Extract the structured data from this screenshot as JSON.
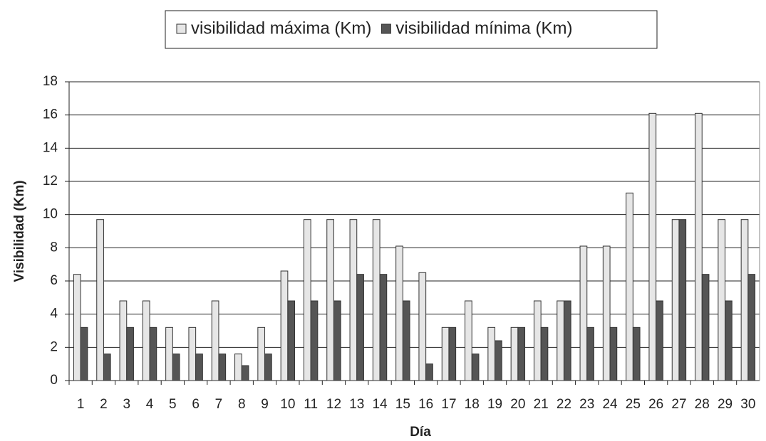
{
  "chart_data": {
    "type": "bar",
    "x_label": "Día",
    "y_label": "Visibilidad (Km)",
    "categories": [
      "1",
      "2",
      "3",
      "4",
      "5",
      "6",
      "7",
      "8",
      "9",
      "10",
      "11",
      "12",
      "13",
      "14",
      "15",
      "16",
      "17",
      "18",
      "19",
      "20",
      "21",
      "22",
      "23",
      "24",
      "25",
      "26",
      "27",
      "28",
      "29",
      "30"
    ],
    "series": [
      {
        "name": "visibilidad máxima (Km)",
        "color": "#e6e6e6",
        "values": [
          6.4,
          9.7,
          4.8,
          4.8,
          3.2,
          3.2,
          4.8,
          1.6,
          3.2,
          6.6,
          9.7,
          9.7,
          9.7,
          9.7,
          8.1,
          6.5,
          3.2,
          4.8,
          3.2,
          3.2,
          4.8,
          4.8,
          8.1,
          8.1,
          11.3,
          16.1,
          9.7,
          16.1,
          9.7,
          9.7
        ]
      },
      {
        "name": "visibilidad mínima (Km)",
        "color": "#555555",
        "values": [
          3.2,
          1.6,
          3.2,
          3.2,
          1.6,
          1.6,
          1.6,
          0.9,
          1.6,
          4.8,
          4.8,
          4.8,
          6.4,
          6.4,
          4.8,
          1.0,
          3.2,
          1.6,
          2.4,
          3.2,
          3.2,
          4.8,
          3.2,
          3.2,
          3.2,
          4.8,
          9.7,
          6.4,
          4.8,
          6.4
        ]
      }
    ],
    "ylim": [
      0,
      18
    ],
    "yticks": [
      0,
      2,
      4,
      6,
      8,
      10,
      12,
      14,
      16,
      18
    ],
    "grid": true,
    "legend": "top"
  }
}
